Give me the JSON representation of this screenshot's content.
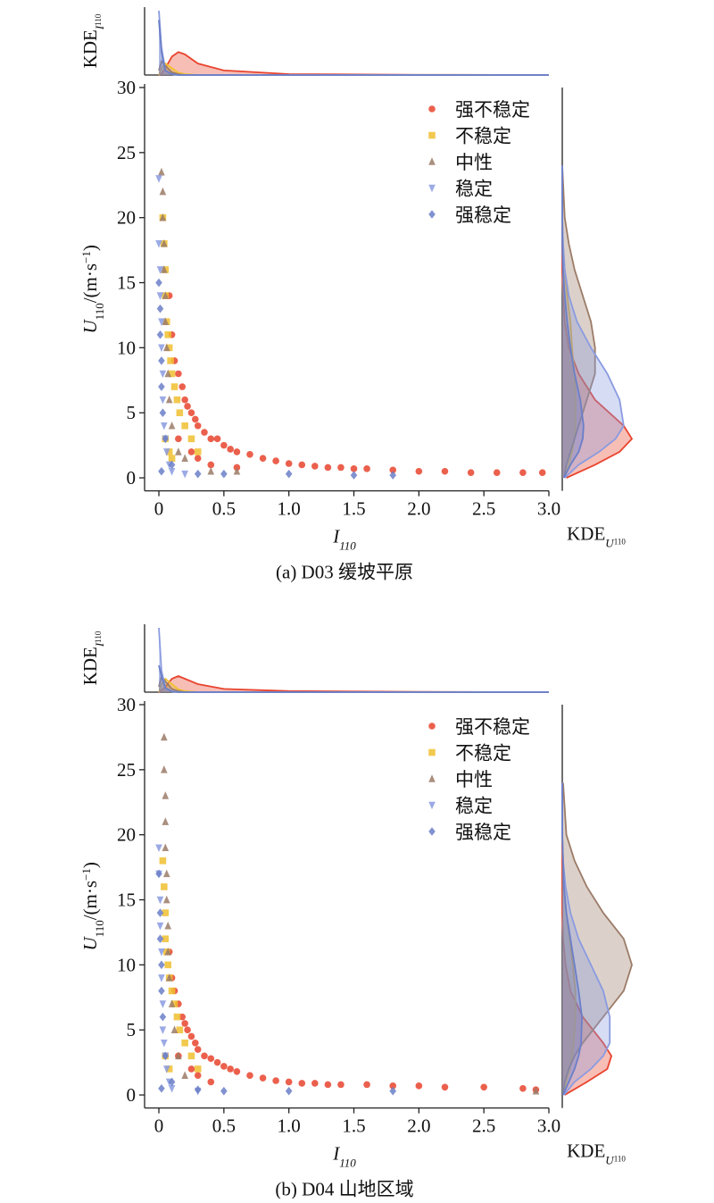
{
  "chart_data": [
    {
      "type": "scatter",
      "caption": "(a) D03 缓坡平原",
      "xlabel": [
        "I",
        "110"
      ],
      "ylabel": [
        "U",
        "110",
        "/(m·s",
        "−1",
        ")"
      ],
      "top_label": [
        "KDE",
        "I",
        "110"
      ],
      "right_label": [
        "KDE",
        "U",
        "110"
      ],
      "xlim": [
        -0.11,
        3.0
      ],
      "ylim": [
        -1,
        30
      ],
      "xticks": [
        0,
        0.5,
        {
          "value": 1,
          "label": "1.0"
        },
        1.5,
        {
          "value": 2,
          "label": "2.0"
        },
        2.5,
        {
          "value": 3,
          "label": "3.0"
        }
      ],
      "yticks": [
        0,
        5,
        10,
        15,
        20,
        25,
        30
      ],
      "legend": "upper right",
      "kde_x_grid": [
        0,
        0.02,
        0.05,
        0.1,
        0.15,
        0.2,
        0.3,
        0.5,
        1,
        2,
        3
      ],
      "kde_y_grid": [
        0,
        1,
        2,
        3,
        4,
        6,
        8,
        10,
        12,
        14,
        16,
        18,
        20,
        24
      ],
      "series": [
        {
          "name": "强不稳定",
          "color": "#e8442e",
          "marker": "circle",
          "x": [
            0.08,
            0.1,
            0.12,
            0.15,
            0.18,
            0.2,
            0.22,
            0.25,
            0.28,
            0.3,
            0.35,
            0.4,
            0.45,
            0.5,
            0.55,
            0.6,
            0.7,
            0.8,
            0.9,
            1.0,
            1.1,
            1.2,
            1.3,
            1.4,
            1.5,
            1.6,
            1.8,
            2.0,
            2.2,
            2.4,
            2.6,
            2.8,
            2.95,
            0.3,
            0.4,
            0.6,
            0.15,
            0.25
          ],
          "values": [
            14,
            11,
            9,
            8,
            7,
            6,
            5.5,
            5,
            4.5,
            4,
            3.5,
            3,
            3,
            2.5,
            2.2,
            2,
            1.8,
            1.5,
            1.3,
            1.1,
            1.0,
            0.9,
            0.8,
            0.8,
            0.7,
            0.7,
            0.6,
            0.5,
            0.5,
            0.4,
            0.4,
            0.4,
            0.4,
            1.5,
            1,
            0.8,
            3,
            2
          ],
          "kde_x": [
            0,
            0.3,
            1.5,
            4,
            5,
            4.5,
            2.5,
            1,
            0.2,
            0.05,
            0
          ],
          "kde_y": [
            0.5,
            4,
            7,
            8.5,
            7.5,
            4,
            2,
            0.8,
            0.3,
            0.1,
            0,
            0,
            0,
            0
          ]
        },
        {
          "name": "不稳定",
          "color": "#f0c030",
          "marker": "square",
          "x": [
            0.03,
            0.04,
            0.05,
            0.05,
            0.06,
            0.07,
            0.08,
            0.09,
            0.1,
            0.12,
            0.14,
            0.16,
            0.2,
            0.25,
            0.3,
            0.05,
            0.08,
            0.1
          ],
          "values": [
            20,
            18,
            16,
            14,
            12,
            11,
            10,
            9,
            8,
            7,
            6,
            5,
            4,
            3,
            2,
            3,
            2,
            1.5
          ],
          "kde_x": [
            0,
            1.5,
            2.5,
            1.5,
            0.5,
            0.2,
            0,
            0,
            0,
            0,
            0
          ],
          "kde_y": [
            0.3,
            0.8,
            1.2,
            1.5,
            1.6,
            1.6,
            1.5,
            1.2,
            1,
            0.6,
            0.3,
            0.1,
            0,
            0
          ]
        },
        {
          "name": "中性",
          "color": "#9b7b67",
          "marker": "triangle-up",
          "x": [
            0.02,
            0.03,
            0.03,
            0.04,
            0.04,
            0.05,
            0.05,
            0.06,
            0.07,
            0.08,
            0.1,
            0.15,
            0.2,
            0.4,
            0.6
          ],
          "values": [
            23.5,
            22,
            20,
            18,
            16,
            14,
            12,
            10,
            8,
            6,
            4,
            2,
            1.5,
            0.5,
            0.5
          ],
          "kde_x": [
            1,
            3,
            2,
            0.6,
            0.2,
            0,
            0,
            0,
            0,
            0,
            0
          ],
          "kde_y": [
            0.2,
            0.5,
            1,
            1.5,
            2,
            3,
            4,
            4,
            3.5,
            2.5,
            1.5,
            0.8,
            0.3,
            0
          ]
        },
        {
          "name": "稳定",
          "color": "#8a9be0",
          "marker": "triangle-down",
          "x": [
            0,
            0,
            0.01,
            0.01,
            0.02,
            0.02,
            0.03,
            0.03,
            0.04,
            0.05,
            0.06,
            0.08,
            0.1,
            0.2
          ],
          "values": [
            23,
            18,
            16,
            14,
            12,
            10,
            8,
            6,
            4,
            3,
            2,
            1,
            0.5,
            0.3
          ],
          "kde_x": [
            14,
            6,
            1,
            0.2,
            0,
            0,
            0,
            0,
            0,
            0,
            0
          ],
          "kde_y": [
            0.3,
            2,
            4.5,
            6.5,
            7.5,
            7,
            5.5,
            3.5,
            1.8,
            0.8,
            0.3,
            0.1,
            0,
            0
          ]
        },
        {
          "name": "强稳定",
          "color": "#6b7fc8",
          "marker": "diamond",
          "x": [
            0,
            0.01,
            0.01,
            0.02,
            0.02,
            0.03,
            0.05,
            0.1,
            0.3,
            0.5,
            1.0,
            1.5,
            1.8,
            0.02
          ],
          "values": [
            15,
            13,
            11,
            9,
            7,
            5,
            3,
            1,
            0.3,
            0.3,
            0.3,
            0.2,
            0.2,
            0.5
          ],
          "kde_x": [
            12,
            5,
            1,
            0.2,
            0,
            0,
            0,
            0,
            0,
            0,
            0
          ],
          "kde_y": [
            0.2,
            1,
            2,
            2.5,
            2.6,
            2.2,
            1.5,
            1,
            0.6,
            0.3,
            0.1,
            0,
            0,
            0
          ]
        }
      ]
    },
    {
      "type": "scatter",
      "caption": "(b) D04 山地区域",
      "xlabel": [
        "I",
        "110"
      ],
      "ylabel": [
        "U",
        "110",
        "/(m·s",
        "−1",
        ")"
      ],
      "top_label": [
        "KDE",
        "I",
        "110"
      ],
      "right_label": [
        "KDE",
        "U",
        "110"
      ],
      "xlim": [
        -0.11,
        3.0
      ],
      "ylim": [
        -1,
        30
      ],
      "xticks": [
        0,
        0.5,
        {
          "value": 1,
          "label": "1.0"
        },
        1.5,
        {
          "value": 2,
          "label": "2.0"
        },
        2.5,
        {
          "value": 3,
          "label": "3.0"
        }
      ],
      "yticks": [
        0,
        5,
        10,
        15,
        20,
        25,
        30
      ],
      "legend": "upper right",
      "kde_x_grid": [
        0,
        0.02,
        0.05,
        0.1,
        0.15,
        0.2,
        0.3,
        0.5,
        1,
        2,
        3
      ],
      "kde_y_grid": [
        0,
        1,
        2,
        3,
        4,
        6,
        8,
        10,
        12,
        14,
        16,
        18,
        20,
        24
      ],
      "series": [
        {
          "name": "强不稳定",
          "color": "#e8442e",
          "marker": "circle",
          "x": [
            0.08,
            0.1,
            0.12,
            0.15,
            0.18,
            0.2,
            0.22,
            0.25,
            0.28,
            0.3,
            0.35,
            0.4,
            0.45,
            0.5,
            0.55,
            0.6,
            0.7,
            0.8,
            0.9,
            1.0,
            1.1,
            1.2,
            1.3,
            1.4,
            1.6,
            1.8,
            2.0,
            2.2,
            2.5,
            2.8,
            2.9,
            0.3,
            0.4,
            0.15,
            0.25
          ],
          "values": [
            11,
            9,
            8,
            7,
            6,
            5.5,
            5,
            4.5,
            4,
            3.5,
            3,
            2.8,
            2.5,
            2.2,
            2,
            1.8,
            1.5,
            1.3,
            1.1,
            1.0,
            0.9,
            0.9,
            0.8,
            0.8,
            0.8,
            0.7,
            0.7,
            0.6,
            0.6,
            0.5,
            0.4,
            1.5,
            1,
            3,
            2
          ],
          "kde_x": [
            0,
            0.3,
            1,
            2.5,
            3,
            2.5,
            1.5,
            0.6,
            0.2,
            0.05,
            0
          ],
          "kde_y": [
            0.3,
            3,
            5.5,
            6,
            5,
            2.5,
            1,
            0.4,
            0.1,
            0,
            0,
            0,
            0,
            0
          ]
        },
        {
          "name": "不稳定",
          "color": "#f0c030",
          "marker": "square",
          "x": [
            0.03,
            0.04,
            0.05,
            0.05,
            0.06,
            0.07,
            0.08,
            0.1,
            0.12,
            0.14,
            0.16,
            0.2,
            0.25,
            0.3,
            0.05,
            0.08
          ],
          "values": [
            18,
            16,
            14,
            12,
            11,
            10,
            9,
            8,
            7,
            6,
            5,
            4,
            3,
            2,
            3,
            2
          ],
          "kde_x": [
            0,
            1.5,
            2.5,
            1.5,
            0.5,
            0.2,
            0,
            0,
            0,
            0,
            0
          ],
          "kde_y": [
            0.2,
            0.5,
            0.9,
            1.2,
            1.4,
            1.6,
            1.6,
            1.3,
            0.9,
            0.5,
            0.2,
            0.1,
            0,
            0
          ]
        },
        {
          "name": "中性",
          "color": "#9b7b67",
          "marker": "triangle-up",
          "x": [
            0.04,
            0.04,
            0.05,
            0.05,
            0.05,
            0.06,
            0.06,
            0.07,
            0.07,
            0.08,
            0.1,
            0.12,
            0.15,
            0.2,
            2.9
          ],
          "values": [
            27.5,
            25,
            23,
            21,
            19,
            17,
            15,
            13,
            11,
            9,
            7,
            5,
            3,
            1.5,
            0.3
          ],
          "kde_x": [
            1,
            3,
            2,
            0.6,
            0.2,
            0,
            0,
            0,
            0,
            0,
            0
          ],
          "kde_y": [
            0.1,
            0.3,
            0.8,
            1.5,
            2.5,
            5,
            7.5,
            8.5,
            7.5,
            5,
            3,
            1.5,
            0.5,
            0.1
          ]
        },
        {
          "name": "稳定",
          "color": "#8a9be0",
          "marker": "triangle-down",
          "x": [
            0,
            0,
            0.01,
            0.01,
            0.02,
            0.02,
            0.03,
            0.03,
            0.04,
            0.05,
            0.06,
            0.08,
            0.1,
            0.3
          ],
          "values": [
            19,
            17,
            15,
            13,
            11,
            9,
            7,
            5,
            4,
            3,
            2,
            1,
            0.5,
            0.3
          ],
          "kde_x": [
            12,
            4,
            0.8,
            0.2,
            0,
            0,
            0,
            0,
            0,
            0,
            0
          ],
          "kde_y": [
            0.2,
            1.5,
            3.5,
            5,
            5.8,
            5.8,
            5,
            3.5,
            2,
            1,
            0.4,
            0.1,
            0,
            0
          ]
        },
        {
          "name": "强稳定",
          "color": "#6b7fc8",
          "marker": "diamond",
          "x": [
            0,
            0.01,
            0.01,
            0.02,
            0.02,
            0.03,
            0.05,
            0.1,
            0.3,
            0.5,
            1.0,
            1.8,
            0.02
          ],
          "values": [
            17,
            14,
            12,
            10,
            8,
            6,
            3,
            1,
            0.4,
            0.3,
            0.3,
            0.3,
            0.5
          ],
          "kde_x": [
            5,
            3,
            0.8,
            0.1,
            0,
            0,
            0,
            0,
            0,
            0,
            0
          ],
          "kde_y": [
            0.1,
            0.8,
            1.5,
            2,
            2.3,
            2.4,
            2,
            1.5,
            1,
            0.5,
            0.2,
            0.1,
            0,
            0
          ]
        }
      ]
    }
  ]
}
